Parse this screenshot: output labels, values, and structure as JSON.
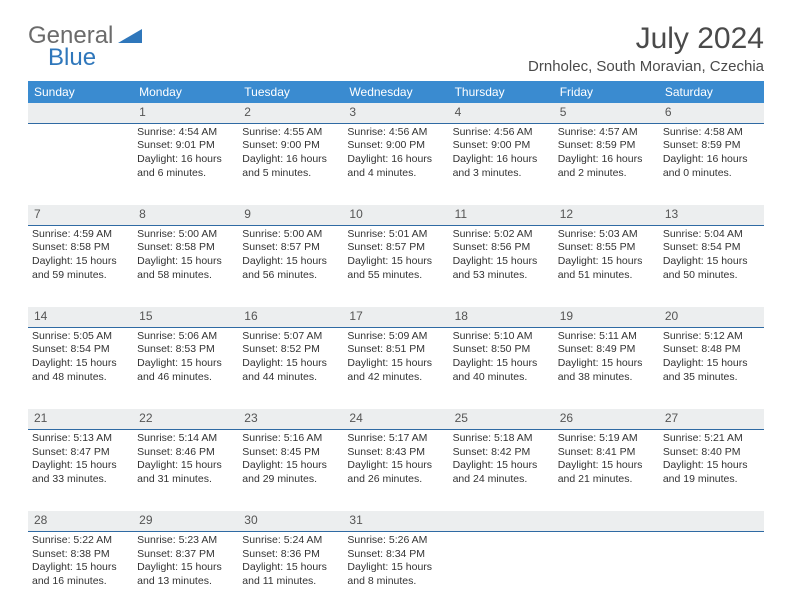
{
  "logo": {
    "text1": "General",
    "text2": "Blue"
  },
  "title": "July 2024",
  "location": "Drnholec, South Moravian, Czechia",
  "colors": {
    "header_bg": "#3a8bd0",
    "header_text": "#ffffff",
    "daynum_bg": "#eceeef",
    "daynum_border": "#2f6aa3",
    "logo_gray": "#6b6b6b",
    "logo_blue": "#2f77bb"
  },
  "layout": {
    "type": "table",
    "columns": 7,
    "rows": 5
  },
  "weekdays": [
    "Sunday",
    "Monday",
    "Tuesday",
    "Wednesday",
    "Thursday",
    "Friday",
    "Saturday"
  ],
  "weeks": [
    [
      {
        "day": "",
        "lines": []
      },
      {
        "day": "1",
        "lines": [
          "Sunrise: 4:54 AM",
          "Sunset: 9:01 PM",
          "Daylight: 16 hours",
          "and 6 minutes."
        ]
      },
      {
        "day": "2",
        "lines": [
          "Sunrise: 4:55 AM",
          "Sunset: 9:00 PM",
          "Daylight: 16 hours",
          "and 5 minutes."
        ]
      },
      {
        "day": "3",
        "lines": [
          "Sunrise: 4:56 AM",
          "Sunset: 9:00 PM",
          "Daylight: 16 hours",
          "and 4 minutes."
        ]
      },
      {
        "day": "4",
        "lines": [
          "Sunrise: 4:56 AM",
          "Sunset: 9:00 PM",
          "Daylight: 16 hours",
          "and 3 minutes."
        ]
      },
      {
        "day": "5",
        "lines": [
          "Sunrise: 4:57 AM",
          "Sunset: 8:59 PM",
          "Daylight: 16 hours",
          "and 2 minutes."
        ]
      },
      {
        "day": "6",
        "lines": [
          "Sunrise: 4:58 AM",
          "Sunset: 8:59 PM",
          "Daylight: 16 hours",
          "and 0 minutes."
        ]
      }
    ],
    [
      {
        "day": "7",
        "lines": [
          "Sunrise: 4:59 AM",
          "Sunset: 8:58 PM",
          "Daylight: 15 hours",
          "and 59 minutes."
        ]
      },
      {
        "day": "8",
        "lines": [
          "Sunrise: 5:00 AM",
          "Sunset: 8:58 PM",
          "Daylight: 15 hours",
          "and 58 minutes."
        ]
      },
      {
        "day": "9",
        "lines": [
          "Sunrise: 5:00 AM",
          "Sunset: 8:57 PM",
          "Daylight: 15 hours",
          "and 56 minutes."
        ]
      },
      {
        "day": "10",
        "lines": [
          "Sunrise: 5:01 AM",
          "Sunset: 8:57 PM",
          "Daylight: 15 hours",
          "and 55 minutes."
        ]
      },
      {
        "day": "11",
        "lines": [
          "Sunrise: 5:02 AM",
          "Sunset: 8:56 PM",
          "Daylight: 15 hours",
          "and 53 minutes."
        ]
      },
      {
        "day": "12",
        "lines": [
          "Sunrise: 5:03 AM",
          "Sunset: 8:55 PM",
          "Daylight: 15 hours",
          "and 51 minutes."
        ]
      },
      {
        "day": "13",
        "lines": [
          "Sunrise: 5:04 AM",
          "Sunset: 8:54 PM",
          "Daylight: 15 hours",
          "and 50 minutes."
        ]
      }
    ],
    [
      {
        "day": "14",
        "lines": [
          "Sunrise: 5:05 AM",
          "Sunset: 8:54 PM",
          "Daylight: 15 hours",
          "and 48 minutes."
        ]
      },
      {
        "day": "15",
        "lines": [
          "Sunrise: 5:06 AM",
          "Sunset: 8:53 PM",
          "Daylight: 15 hours",
          "and 46 minutes."
        ]
      },
      {
        "day": "16",
        "lines": [
          "Sunrise: 5:07 AM",
          "Sunset: 8:52 PM",
          "Daylight: 15 hours",
          "and 44 minutes."
        ]
      },
      {
        "day": "17",
        "lines": [
          "Sunrise: 5:09 AM",
          "Sunset: 8:51 PM",
          "Daylight: 15 hours",
          "and 42 minutes."
        ]
      },
      {
        "day": "18",
        "lines": [
          "Sunrise: 5:10 AM",
          "Sunset: 8:50 PM",
          "Daylight: 15 hours",
          "and 40 minutes."
        ]
      },
      {
        "day": "19",
        "lines": [
          "Sunrise: 5:11 AM",
          "Sunset: 8:49 PM",
          "Daylight: 15 hours",
          "and 38 minutes."
        ]
      },
      {
        "day": "20",
        "lines": [
          "Sunrise: 5:12 AM",
          "Sunset: 8:48 PM",
          "Daylight: 15 hours",
          "and 35 minutes."
        ]
      }
    ],
    [
      {
        "day": "21",
        "lines": [
          "Sunrise: 5:13 AM",
          "Sunset: 8:47 PM",
          "Daylight: 15 hours",
          "and 33 minutes."
        ]
      },
      {
        "day": "22",
        "lines": [
          "Sunrise: 5:14 AM",
          "Sunset: 8:46 PM",
          "Daylight: 15 hours",
          "and 31 minutes."
        ]
      },
      {
        "day": "23",
        "lines": [
          "Sunrise: 5:16 AM",
          "Sunset: 8:45 PM",
          "Daylight: 15 hours",
          "and 29 minutes."
        ]
      },
      {
        "day": "24",
        "lines": [
          "Sunrise: 5:17 AM",
          "Sunset: 8:43 PM",
          "Daylight: 15 hours",
          "and 26 minutes."
        ]
      },
      {
        "day": "25",
        "lines": [
          "Sunrise: 5:18 AM",
          "Sunset: 8:42 PM",
          "Daylight: 15 hours",
          "and 24 minutes."
        ]
      },
      {
        "day": "26",
        "lines": [
          "Sunrise: 5:19 AM",
          "Sunset: 8:41 PM",
          "Daylight: 15 hours",
          "and 21 minutes."
        ]
      },
      {
        "day": "27",
        "lines": [
          "Sunrise: 5:21 AM",
          "Sunset: 8:40 PM",
          "Daylight: 15 hours",
          "and 19 minutes."
        ]
      }
    ],
    [
      {
        "day": "28",
        "lines": [
          "Sunrise: 5:22 AM",
          "Sunset: 8:38 PM",
          "Daylight: 15 hours",
          "and 16 minutes."
        ]
      },
      {
        "day": "29",
        "lines": [
          "Sunrise: 5:23 AM",
          "Sunset: 8:37 PM",
          "Daylight: 15 hours",
          "and 13 minutes."
        ]
      },
      {
        "day": "30",
        "lines": [
          "Sunrise: 5:24 AM",
          "Sunset: 8:36 PM",
          "Daylight: 15 hours",
          "and 11 minutes."
        ]
      },
      {
        "day": "31",
        "lines": [
          "Sunrise: 5:26 AM",
          "Sunset: 8:34 PM",
          "Daylight: 15 hours",
          "and 8 minutes."
        ]
      },
      {
        "day": "",
        "lines": []
      },
      {
        "day": "",
        "lines": []
      },
      {
        "day": "",
        "lines": []
      }
    ]
  ]
}
